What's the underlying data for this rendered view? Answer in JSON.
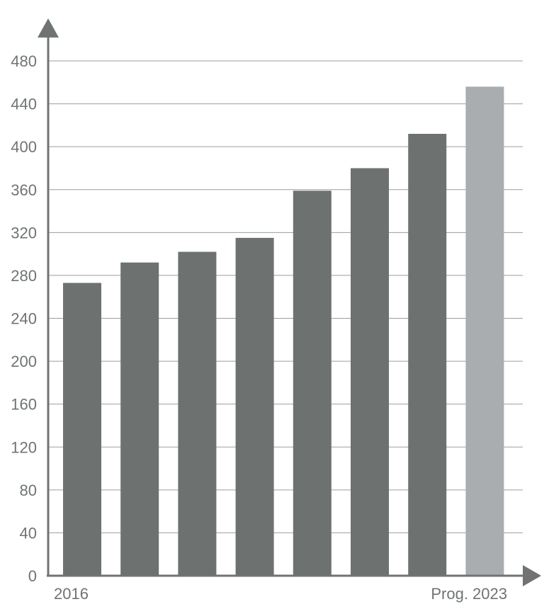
{
  "chart_data": {
    "type": "bar",
    "categories": [
      "2016",
      "",
      "",
      "",
      "",
      "",
      "",
      "Prog. 2023"
    ],
    "values": [
      273,
      292,
      302,
      315,
      359,
      380,
      412,
      456
    ],
    "projected": [
      false,
      false,
      false,
      false,
      false,
      false,
      false,
      true
    ],
    "yticks": [
      0,
      40,
      80,
      120,
      160,
      200,
      240,
      280,
      320,
      360,
      400,
      440,
      480
    ],
    "ylim": [
      0,
      480
    ],
    "grid": true,
    "title": "",
    "xlabel": "",
    "ylabel": "",
    "colors": {
      "bar": "#6d7270",
      "projected_bar": "#a9adb0",
      "axis": "#6f7472",
      "grid": "#9a9ea0"
    }
  }
}
